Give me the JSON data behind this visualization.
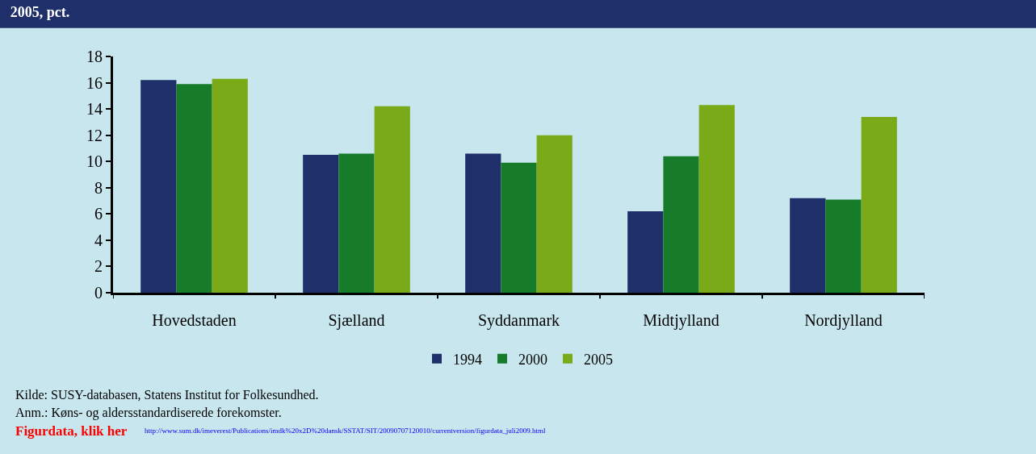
{
  "chart_data": {
    "type": "bar",
    "title": "2005, pct.",
    "categories": [
      "Hovedstaden",
      "Sjælland",
      "Syddanmark",
      "Midtjylland",
      "Nordjylland"
    ],
    "series": [
      {
        "name": "1994",
        "color": "#1e2f6a",
        "values": [
          16.2,
          10.5,
          10.6,
          6.2,
          7.2
        ]
      },
      {
        "name": "2000",
        "color": "#177c29",
        "values": [
          15.9,
          10.6,
          9.9,
          10.4,
          7.1
        ]
      },
      {
        "name": "2005",
        "color": "#7aaa17",
        "values": [
          16.3,
          14.2,
          12.0,
          14.3,
          13.4
        ]
      }
    ],
    "ylim": [
      0,
      18
    ],
    "yticks": [
      0,
      2,
      4,
      6,
      8,
      10,
      12,
      14,
      16,
      18
    ],
    "grid": false,
    "legend": "bottom",
    "annotations": [
      "Kilde: SUSY-databasen, Statens Institut for Folkesundhed.",
      "Anm.: Køns- og aldersstandardiserede forekomster.",
      "Figurdata, klik her",
      "http://www.sum.dk/imeverest/Publications/imdk%20x2D%20dansk/SSTAT/SIT/20090707120010/currentversion/figurdata_juli2009.html"
    ]
  }
}
